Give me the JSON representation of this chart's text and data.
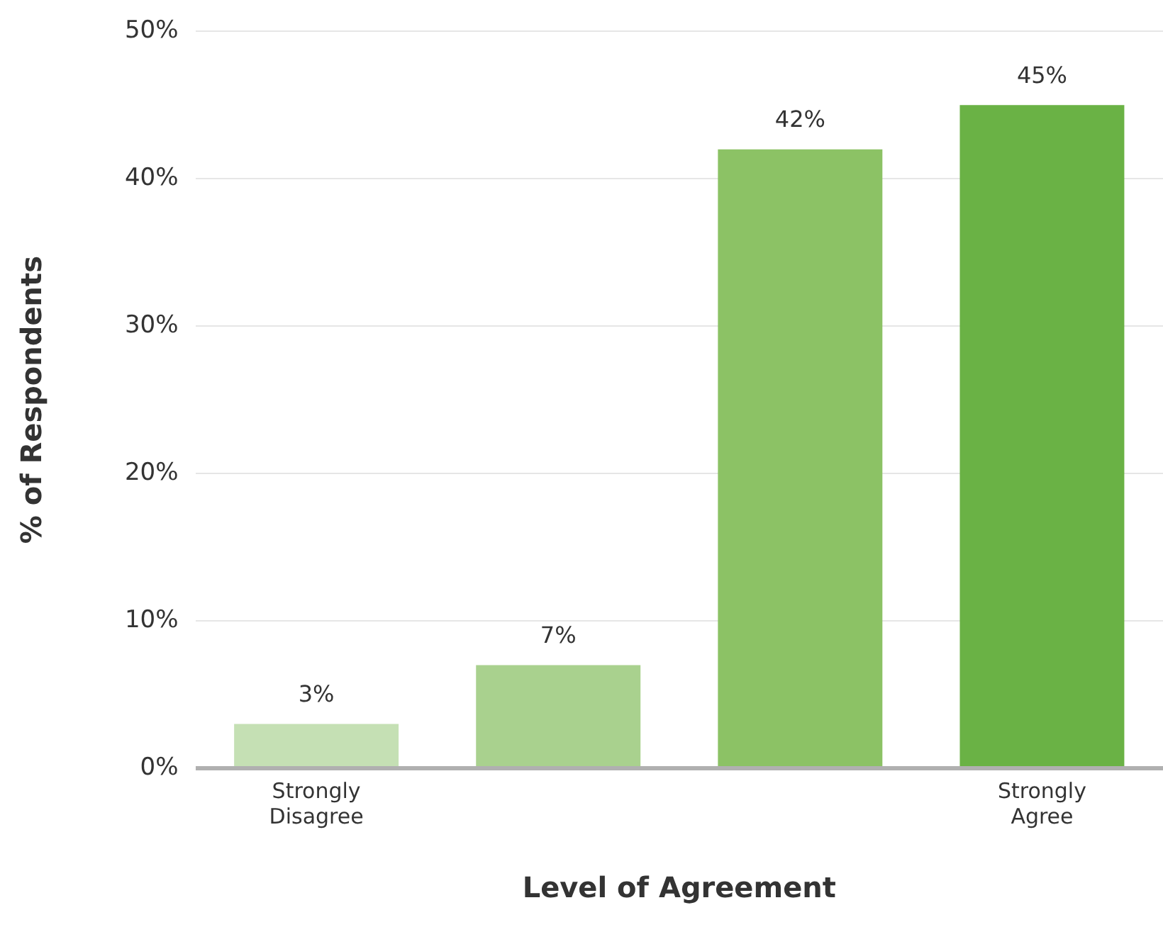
{
  "chart_data": {
    "type": "bar",
    "xlabel": "Level of Agreement",
    "ylabel": "% of Respondents",
    "categories": [
      "Strongly Disagree",
      null,
      null,
      "Strongly Agree"
    ],
    "values": [
      3,
      7,
      42,
      45
    ],
    "colors": [
      "#c5e0b4",
      "#a9d18e",
      "#8cc265",
      "#6ab245"
    ],
    "value_labels": [
      "3%",
      "7%",
      "42%",
      "45%"
    ],
    "ylim": [
      0,
      50
    ],
    "yticks": [
      {
        "value": 0,
        "label": "0%"
      },
      {
        "value": 10,
        "label": "10%"
      },
      {
        "value": 20,
        "label": "20%"
      },
      {
        "value": 30,
        "label": "30%"
      },
      {
        "value": 40,
        "label": "40%"
      },
      {
        "value": 50,
        "label": "50%"
      }
    ],
    "grid": "y",
    "legend": false
  }
}
